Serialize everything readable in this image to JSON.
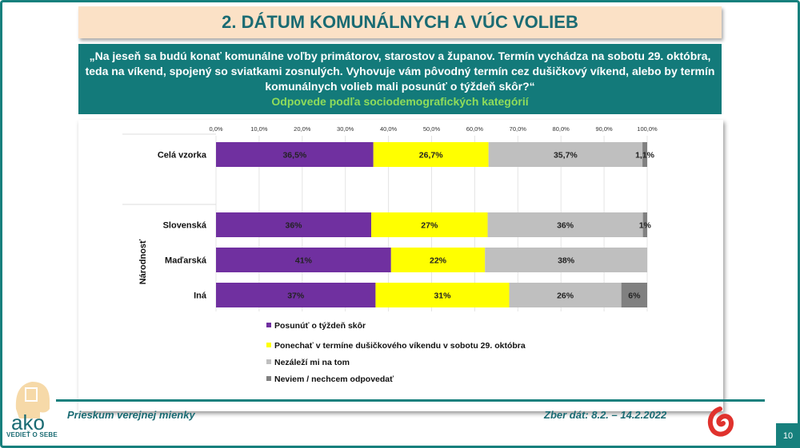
{
  "title": "2. DÁTUM KOMUNÁLNYCH A VÚC VOLIEB",
  "question": "„Na jeseň sa budú konať komunálne voľby primátorov, starostov a županov. Termín vychádza na sobotu 29. októbra, teda na víkend, spojený so sviatkami zosnulých. Vyhovuje vám pôvodný termín cez dušičkový víkend, alebo by termín komunálnych volieb mali posunúť o týždeň skôr?“",
  "subtitle": "Odpovede podľa sociodemografických kategórií",
  "chart_data": {
    "type": "bar",
    "orientation": "horizontal",
    "stacked": true,
    "xlim": [
      0,
      100
    ],
    "ticks": [
      "0,0%",
      "10,0%",
      "20,0%",
      "30,0%",
      "40,0%",
      "50,0%",
      "60,0%",
      "70,0%",
      "80,0%",
      "90,0%",
      "100,0%"
    ],
    "group_label": "Národnosť",
    "categories": [
      "Celá vzorka",
      "Slovenská",
      "Maďarská",
      "Iná"
    ],
    "series": [
      {
        "name": "Posunúť o týždeň skôr",
        "color": "#7030a0",
        "values": [
          36.5,
          36,
          41,
          37
        ],
        "labels": [
          "36,5%",
          "36%",
          "41%",
          "37%"
        ]
      },
      {
        "name": "Ponechať v termíne dušičkového víkendu v sobotu 29. októbra",
        "color": "#ffff00",
        "values": [
          26.7,
          27,
          22,
          31
        ],
        "labels": [
          "26,7%",
          "27%",
          "22%",
          "31%"
        ]
      },
      {
        "name": "Nezáleží mi na tom",
        "color": "#bfbfbf",
        "values": [
          35.7,
          36,
          38,
          26
        ],
        "labels": [
          "35,7%",
          "36%",
          "38%",
          "26%"
        ]
      },
      {
        "name": "Neviem / nechcem odpovedať",
        "color": "#808080",
        "values": [
          1.1,
          1,
          0,
          6
        ],
        "labels": [
          "1,1%",
          "1%",
          "",
          "6%"
        ]
      }
    ],
    "legend": "bottom"
  },
  "footer": {
    "left": "Prieskum verejnej mienky",
    "right": "Zber dát: 8.2. – 14.2.2022",
    "page": "10",
    "logo": "ako",
    "logo_tagline": "VEDIEŤ O SEBE"
  }
}
